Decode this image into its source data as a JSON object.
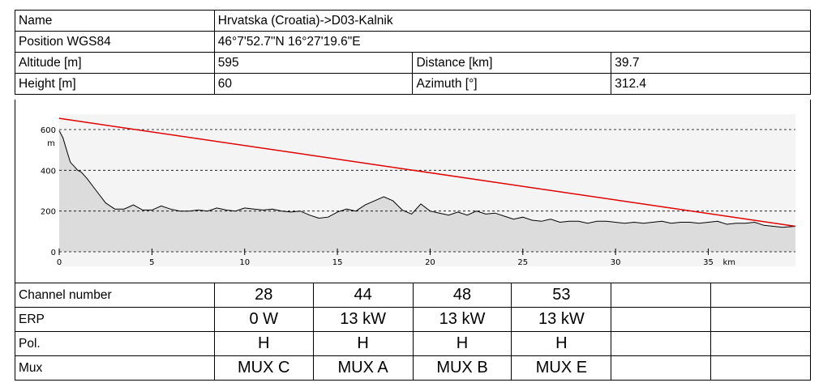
{
  "info": {
    "name_label": "Name",
    "name_value": "Hrvatska (Croatia)->D03-Kalnik",
    "position_label": "Position WGS84",
    "position_value": "46°7'52.7\"N 16°27'19.6\"E",
    "altitude_label": "Altitude [m]",
    "altitude_value": "595",
    "distance_label": "Distance [km]",
    "distance_value": "39.7",
    "height_label": "Height [m]",
    "height_value": "60",
    "azimuth_label": "Azimuth [°]",
    "azimuth_value": "312.4"
  },
  "channels": {
    "rows": [
      {
        "label": "Channel number",
        "values": [
          "28",
          "44",
          "48",
          "53",
          "",
          ""
        ]
      },
      {
        "label": "ERP",
        "values": [
          "0 W",
          "13 kW",
          "13 kW",
          "13 kW",
          "",
          ""
        ]
      },
      {
        "label": "Pol.",
        "values": [
          "H",
          "H",
          "H",
          "H",
          "",
          ""
        ]
      },
      {
        "label": "Mux",
        "values": [
          "MUX C",
          "MUX A",
          "MUX B",
          "MUX E",
          "",
          ""
        ]
      }
    ]
  },
  "chart_data": {
    "type": "area",
    "xlabel": "km",
    "ylabel": "m",
    "xlim": [
      0,
      39.7
    ],
    "ylim": [
      0,
      600
    ],
    "x_ticks": [
      0,
      5,
      10,
      15,
      20,
      25,
      30,
      35
    ],
    "y_ticks": [
      0,
      200,
      400,
      600
    ],
    "grid": "dashed horizontal at 200, 400, 600",
    "colors": {
      "terrain_fill": "#dcdcdc",
      "terrain_line": "#000000",
      "ray": "#e00000",
      "plot_bg": "#f4f4f4"
    },
    "terrain": {
      "x": [
        0,
        0.2,
        0.4,
        0.6,
        0.8,
        1,
        1.2,
        1.5,
        2,
        2.5,
        3,
        3.5,
        4,
        4.5,
        5,
        5.5,
        6,
        6.5,
        7,
        7.5,
        8,
        8.5,
        9,
        9.5,
        10,
        10.5,
        11,
        11.5,
        12,
        12.5,
        13,
        13.5,
        14,
        14.5,
        15,
        15.5,
        16,
        16.5,
        17,
        17.5,
        18,
        18.5,
        19,
        19.5,
        20,
        20.5,
        21,
        21.5,
        22,
        22.5,
        23,
        23.5,
        24,
        24.5,
        25,
        25.5,
        26,
        26.5,
        27,
        27.5,
        28,
        28.5,
        29,
        29.5,
        30,
        30.5,
        31,
        31.5,
        32,
        32.5,
        33,
        33.5,
        34,
        34.5,
        35,
        35.5,
        36,
        36.5,
        37,
        37.5,
        38,
        38.5,
        39,
        39.7
      ],
      "y": [
        595,
        560,
        500,
        440,
        420,
        400,
        390,
        360,
        300,
        240,
        210,
        210,
        230,
        205,
        205,
        225,
        210,
        200,
        200,
        205,
        200,
        215,
        205,
        200,
        215,
        210,
        205,
        210,
        200,
        195,
        200,
        180,
        165,
        170,
        195,
        210,
        200,
        230,
        250,
        270,
        250,
        205,
        185,
        235,
        200,
        190,
        180,
        195,
        180,
        200,
        185,
        190,
        175,
        160,
        170,
        155,
        150,
        160,
        145,
        150,
        150,
        140,
        150,
        150,
        145,
        140,
        145,
        140,
        145,
        150,
        140,
        145,
        145,
        140,
        145,
        150,
        135,
        140,
        140,
        145,
        130,
        125,
        120,
        125
      ]
    },
    "ray": {
      "x": [
        0,
        39.7
      ],
      "y": [
        655,
        125
      ]
    }
  }
}
